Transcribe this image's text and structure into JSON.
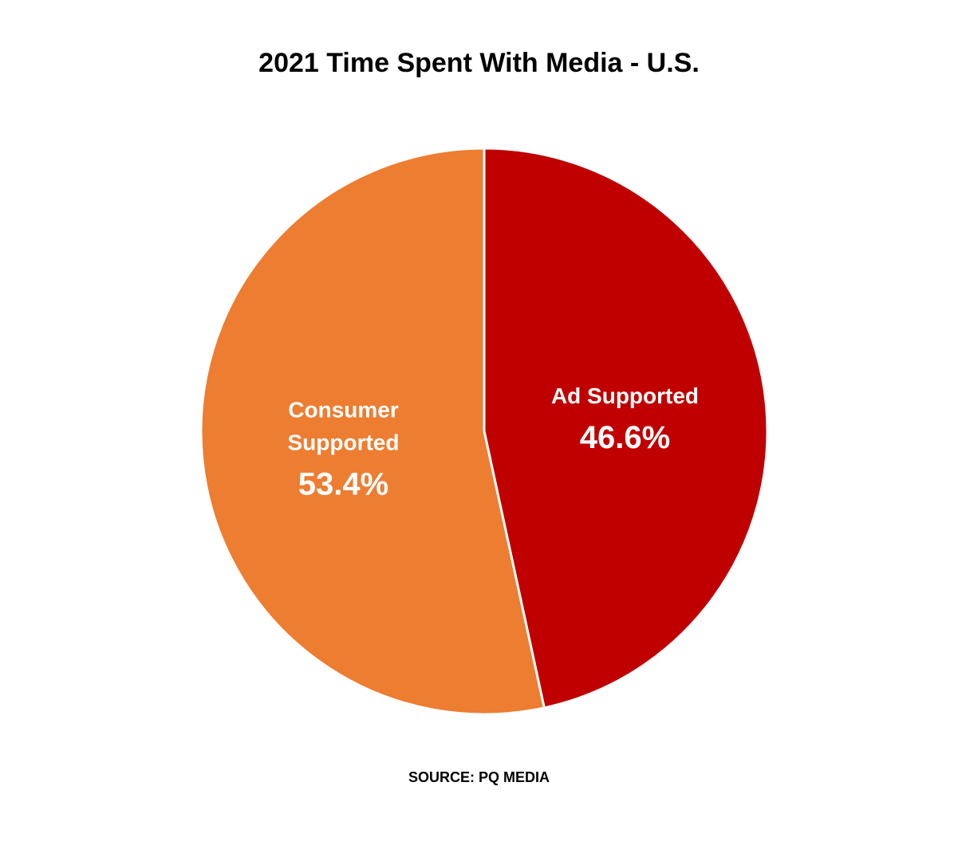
{
  "chart_data": {
    "type": "pie",
    "title": "2021 Time Spent With Media - U.S.",
    "source": "SOURCE: PQ MEDIA",
    "slices": [
      {
        "label_lines": [
          "Ad Supported"
        ],
        "value": 46.6,
        "value_label": "46.6%",
        "color": "#C00000"
      },
      {
        "label_lines": [
          "Consumer",
          "Supported"
        ],
        "value": 53.4,
        "value_label": "53.4%",
        "color": "#ED7D31"
      }
    ],
    "start_angle": "12 o'clock",
    "direction": "clockwise",
    "slice_border_color": "#ffffff",
    "legend": "none"
  }
}
